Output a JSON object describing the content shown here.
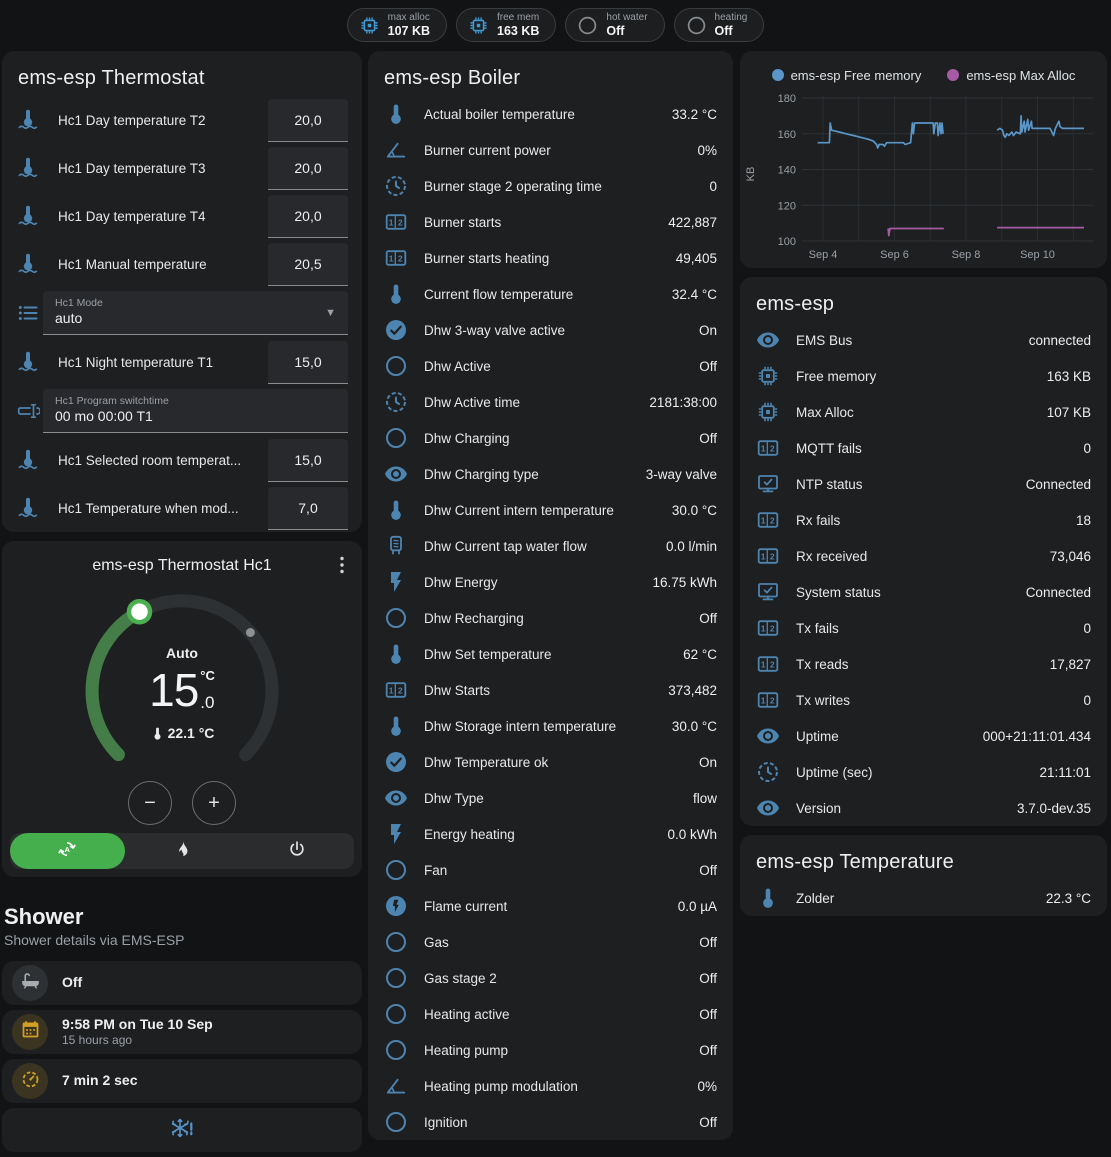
{
  "colors": {
    "badge_blue": "#3f9bd8",
    "badge_gray": "#878b8e",
    "icon_blue": "#4d84b0",
    "amber": "#d2a024",
    "gray": "#a8adb2",
    "snow_blue": "#5794c9",
    "dial_green": "#447d48",
    "knob_green": "#4caf50",
    "mode_green": "#45ae4d"
  },
  "badges": [
    {
      "icon": "chip-icon",
      "icon_color": "#3f9bd8",
      "label": "max alloc",
      "value": "107 KB"
    },
    {
      "icon": "chip-icon",
      "icon_color": "#3f9bd8",
      "label": "free mem",
      "value": "163 KB"
    },
    {
      "icon": "circle-outline-icon",
      "icon_color": "#878b8e",
      "label": "hot water",
      "value": "Off"
    },
    {
      "icon": "circle-outline-icon",
      "icon_color": "#878b8e",
      "label": "heating",
      "value": "Off"
    }
  ],
  "thermostat_card": {
    "title": "ems-esp Thermostat",
    "rows": [
      {
        "icon": "thermometer-water-icon",
        "label": "Hc1 Day temperature T2",
        "control": "number",
        "value": "20,0"
      },
      {
        "icon": "thermometer-water-icon",
        "label": "Hc1 Day temperature T3",
        "control": "number",
        "value": "20,0"
      },
      {
        "icon": "thermometer-water-icon",
        "label": "Hc1 Day temperature T4",
        "control": "number",
        "value": "20,0"
      },
      {
        "icon": "thermometer-water-icon",
        "label": "Hc1 Manual temperature",
        "control": "number",
        "value": "20,5"
      },
      {
        "icon": "format-list-icon",
        "label": "Hc1 Mode",
        "control": "select",
        "value": "auto"
      },
      {
        "icon": "thermometer-water-icon",
        "label": "Hc1 Night temperature T1",
        "control": "number",
        "value": "15,0"
      },
      {
        "icon": "form-textbox-icon",
        "label": "Hc1 Program switchtime",
        "control": "textfield",
        "value": "00 mo 00:00 T1"
      },
      {
        "icon": "thermometer-water-icon",
        "label": "Hc1 Selected room temperat...",
        "control": "number",
        "value": "15,0"
      },
      {
        "icon": "thermometer-water-icon",
        "label": "Hc1 Temperature when mod...",
        "control": "number",
        "value": "7,0"
      }
    ]
  },
  "dial_card": {
    "title": "ems-esp Thermostat Hc1",
    "mode_label": "Auto",
    "target_int": "15",
    "target_dec": ".0",
    "target_unit": "°C",
    "current_temp": "22.1 °C",
    "minus_label": "−",
    "plus_label": "+",
    "modes": [
      {
        "icon": "auto-mode-icon",
        "selected": true
      },
      {
        "icon": "fire-icon",
        "selected": false
      },
      {
        "icon": "power-icon",
        "selected": false
      }
    ]
  },
  "shower": {
    "heading": "Shower",
    "subtitle": "Shower details via EMS-ESP",
    "cards": [
      {
        "icon": "bathtub-icon",
        "tone": "gray",
        "primary": "Off"
      },
      {
        "icon": "calendar-icon",
        "tone": "amber",
        "primary": "9:58 PM on Tue 10 Sep",
        "secondary": "15 hours ago"
      },
      {
        "icon": "timer-icon",
        "tone": "amber",
        "primary": "7 min 2 sec"
      },
      {
        "icon": "snowflake-alert-icon",
        "tone": "blue",
        "centered": true
      }
    ]
  },
  "boiler_card": {
    "title": "ems-esp Boiler",
    "rows": [
      {
        "icon": "thermometer-icon",
        "label": "Actual boiler temperature",
        "value": "33.2 °C"
      },
      {
        "icon": "angle-icon",
        "label": "Burner current power",
        "value": "0%"
      },
      {
        "icon": "clock-icon",
        "label": "Burner stage 2 operating time",
        "value": "0"
      },
      {
        "icon": "counter-icon",
        "label": "Burner starts",
        "value": "422,887"
      },
      {
        "icon": "counter-icon",
        "label": "Burner starts heating",
        "value": "49,405"
      },
      {
        "icon": "thermometer-icon",
        "label": "Current flow temperature",
        "value": "32.4 °C"
      },
      {
        "icon": "check-circle-icon",
        "label": "Dhw 3-way valve active",
        "value": "On"
      },
      {
        "icon": "circle-outline-icon",
        "label": "Dhw Active",
        "value": "Off"
      },
      {
        "icon": "clock-icon",
        "label": "Dhw Active time",
        "value": "2181:38:00"
      },
      {
        "icon": "circle-outline-icon",
        "label": "Dhw Charging",
        "value": "Off"
      },
      {
        "icon": "eye-icon",
        "label": "Dhw Charging type",
        "value": "3-way valve"
      },
      {
        "icon": "thermometer-icon",
        "label": "Dhw Current intern temperature",
        "value": "30.0 °C"
      },
      {
        "icon": "water-heater-icon",
        "label": "Dhw Current tap water flow",
        "value": "0.0 l/min"
      },
      {
        "icon": "flash-icon",
        "label": "Dhw Energy",
        "value": "16.75 kWh"
      },
      {
        "icon": "circle-outline-icon",
        "label": "Dhw Recharging",
        "value": "Off"
      },
      {
        "icon": "thermometer-icon",
        "label": "Dhw Set temperature",
        "value": "62 °C"
      },
      {
        "icon": "counter-icon",
        "label": "Dhw Starts",
        "value": "373,482"
      },
      {
        "icon": "thermometer-icon",
        "label": "Dhw Storage intern temperature",
        "value": "30.0 °C"
      },
      {
        "icon": "check-circle-icon",
        "label": "Dhw Temperature ok",
        "value": "On"
      },
      {
        "icon": "eye-icon",
        "label": "Dhw Type",
        "value": "flow"
      },
      {
        "icon": "flash-icon",
        "label": "Energy heating",
        "value": "0.0 kWh"
      },
      {
        "icon": "circle-outline-icon",
        "label": "Fan",
        "value": "Off"
      },
      {
        "icon": "flash-circle-icon",
        "label": "Flame current",
        "value": "0.0 µA"
      },
      {
        "icon": "circle-outline-icon",
        "label": "Gas",
        "value": "Off"
      },
      {
        "icon": "circle-outline-icon",
        "label": "Gas stage 2",
        "value": "Off"
      },
      {
        "icon": "circle-outline-icon",
        "label": "Heating active",
        "value": "Off"
      },
      {
        "icon": "circle-outline-icon",
        "label": "Heating pump",
        "value": "Off"
      },
      {
        "icon": "angle-icon",
        "label": "Heating pump modulation",
        "value": "0%"
      },
      {
        "icon": "circle-outline-icon",
        "label": "Ignition",
        "value": "Off"
      }
    ]
  },
  "emsesp_card": {
    "title": "ems-esp",
    "rows": [
      {
        "icon": "eye-icon",
        "label": "EMS Bus",
        "value": "connected"
      },
      {
        "icon": "chip-icon",
        "label": "Free memory",
        "value": "163 KB"
      },
      {
        "icon": "chip-icon",
        "label": "Max Alloc",
        "value": "107 KB"
      },
      {
        "icon": "counter-icon",
        "label": "MQTT fails",
        "value": "0"
      },
      {
        "icon": "monitor-check-icon",
        "label": "NTP status",
        "value": "Connected"
      },
      {
        "icon": "counter-icon",
        "label": "Rx fails",
        "value": "18"
      },
      {
        "icon": "counter-icon",
        "label": "Rx received",
        "value": "73,046"
      },
      {
        "icon": "monitor-check-icon",
        "label": "System status",
        "value": "Connected"
      },
      {
        "icon": "counter-icon",
        "label": "Tx fails",
        "value": "0"
      },
      {
        "icon": "counter-icon",
        "label": "Tx reads",
        "value": "17,827"
      },
      {
        "icon": "counter-icon",
        "label": "Tx writes",
        "value": "0"
      },
      {
        "icon": "eye-icon",
        "label": "Uptime",
        "value": "000+21:11:01.434"
      },
      {
        "icon": "clock-icon",
        "label": "Uptime (sec)",
        "value": "21:11:01"
      },
      {
        "icon": "eye-icon",
        "label": "Version",
        "value": "3.7.0-dev.35"
      }
    ]
  },
  "temperature_card": {
    "title": "ems-esp Temperature",
    "rows": [
      {
        "icon": "thermometer-icon",
        "label": "Zolder",
        "value": "22.3 °C"
      }
    ]
  },
  "chart_data": {
    "type": "line",
    "ylabel": "KB",
    "ylim": [
      100,
      180
    ],
    "yticks": [
      100,
      120,
      140,
      160,
      180
    ],
    "xtick_days": [
      4,
      6,
      8,
      10
    ],
    "xtick_labels": [
      "Sep 4",
      "Sep 6",
      "Sep 8",
      "Sep 10"
    ],
    "grid_days": [
      4,
      5,
      6,
      7,
      8,
      9,
      10,
      11
    ],
    "xlim_days": [
      3.55,
      11.35
    ],
    "legend_position": "top",
    "series": [
      {
        "name": "ems-esp Free memory",
        "color": "#5a96c8",
        "segments": [
          [
            [
              3.85,
              155
            ],
            [
              4.18,
              155
            ],
            [
              4.2,
              166
            ],
            [
              4.24,
              162
            ],
            [
              4.45,
              161
            ],
            [
              4.65,
              160
            ],
            [
              4.85,
              159
            ],
            [
              5.05,
              158
            ],
            [
              5.25,
              157
            ],
            [
              5.4,
              156
            ],
            [
              5.5,
              154
            ],
            [
              5.53,
              152
            ],
            [
              5.57,
              154
            ],
            [
              5.68,
              154
            ],
            [
              5.72,
              153
            ],
            [
              5.78,
              155
            ],
            [
              6.25,
              155
            ],
            [
              6.3,
              154
            ],
            [
              6.45,
              155
            ],
            [
              6.5,
              166
            ],
            [
              6.53,
              160
            ],
            [
              6.56,
              166
            ],
            [
              7.08,
              166
            ],
            [
              7.1,
              160
            ],
            [
              7.14,
              166
            ],
            [
              7.2,
              166
            ],
            [
              7.22,
              159
            ],
            [
              7.27,
              166
            ],
            [
              7.3,
              160
            ],
            [
              7.33,
              166
            ],
            [
              7.36,
              160
            ]
          ],
          [
            [
              8.87,
              162
            ],
            [
              8.95,
              163
            ],
            [
              9.02,
              162
            ],
            [
              9.06,
              159
            ],
            [
              9.1,
              158
            ],
            [
              9.14,
              160
            ],
            [
              9.2,
              159
            ],
            [
              9.28,
              161
            ],
            [
              9.33,
              159
            ],
            [
              9.4,
              161
            ],
            [
              9.52,
              160
            ],
            [
              9.54,
              170
            ],
            [
              9.56,
              161
            ],
            [
              9.63,
              167
            ],
            [
              9.65,
              161
            ],
            [
              9.73,
              168
            ],
            [
              9.75,
              162
            ],
            [
              9.83,
              167
            ],
            [
              9.85,
              163
            ],
            [
              9.95,
              163
            ],
            [
              10.15,
              163
            ],
            [
              10.35,
              163
            ],
            [
              10.45,
              159
            ],
            [
              10.5,
              163
            ],
            [
              10.6,
              167
            ],
            [
              10.63,
              164
            ],
            [
              10.7,
              163
            ],
            [
              11.3,
              163
            ]
          ]
        ]
      },
      {
        "name": "ems-esp Max Alloc",
        "color": "#a75ba7",
        "segments": [
          [
            [
              5.82,
              107
            ],
            [
              5.84,
              103
            ],
            [
              5.87,
              107
            ],
            [
              7.38,
              107
            ]
          ],
          [
            [
              8.87,
              107.5
            ],
            [
              11.3,
              107.5
            ]
          ]
        ]
      }
    ]
  }
}
